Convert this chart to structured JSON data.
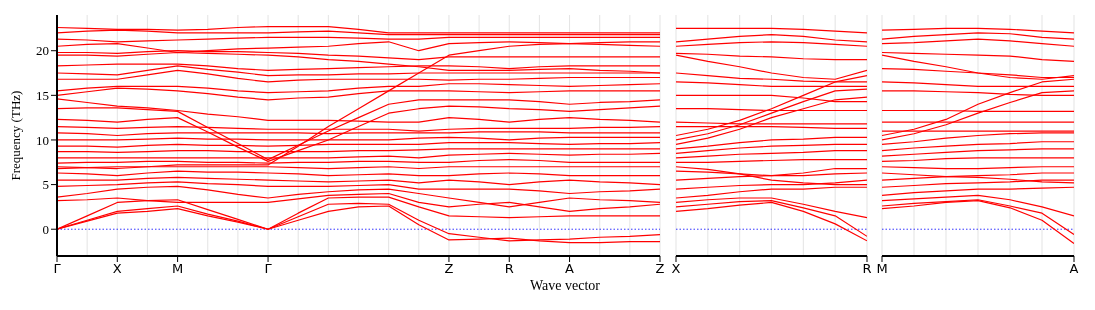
{
  "chart_data": [
    {
      "type": "line",
      "ylabel": "Frequency (THz)",
      "xlabel": "Wave vector",
      "grid": "x",
      "line_style": "solid",
      "marker": "none",
      "categories": [
        "Γ",
        null,
        "X",
        null,
        "M",
        null,
        null,
        "Γ",
        null,
        null,
        null,
        null,
        null,
        "Z",
        null,
        "R",
        null,
        "A",
        null,
        null,
        "Z"
      ],
      "ylim": [
        -3,
        24
      ],
      "yticks": [
        0,
        5,
        10,
        15,
        20
      ],
      "ref_lines": [
        {
          "axis": "y",
          "value": 0,
          "color": "#0000ff",
          "line_style": "dotted"
        }
      ],
      "series": [
        {
          "color": "#ff0000",
          "values": [
            0,
            0.9,
            1.8,
            2.0,
            2.3,
            1.5,
            0.8,
            0,
            1.0,
            2.0,
            2.5,
            2.6,
            0.5,
            -1.2,
            -1.1,
            -1.0,
            -1.3,
            -1.5,
            -1.5,
            -1.4,
            -1.4
          ]
        },
        {
          "color": "#ff0000",
          "values": [
            0,
            1.0,
            2.0,
            2.3,
            2.6,
            1.7,
            0.9,
            0,
            1.4,
            2.8,
            2.9,
            2.8,
            1.0,
            -0.5,
            -0.9,
            -1.3,
            -1.2,
            -1.1,
            -0.9,
            -0.8,
            -0.6
          ]
        },
        {
          "color": "#ff0000",
          "values": [
            0,
            1.5,
            3.0,
            3.2,
            3.3,
            2.2,
            1.1,
            0,
            1.8,
            3.5,
            3.6,
            3.6,
            2.5,
            1.5,
            1.4,
            1.3,
            1.4,
            1.5,
            1.5,
            1.5,
            1.5
          ]
        },
        {
          "color": "#ff0000",
          "values": [
            3.2,
            3.3,
            3.5,
            3.2,
            3.0,
            3.0,
            3.0,
            3.0,
            3.4,
            3.8,
            3.9,
            4.0,
            3.0,
            2.5,
            2.8,
            3.0,
            2.5,
            2.0,
            2.3,
            2.5,
            2.8
          ]
        },
        {
          "color": "#ff0000",
          "values": [
            3.6,
            4.0,
            4.5,
            4.7,
            4.8,
            4.4,
            3.9,
            3.5,
            3.9,
            4.2,
            4.4,
            4.5,
            4.0,
            3.5,
            3.0,
            2.5,
            3.0,
            3.5,
            3.3,
            3.2,
            3.0
          ]
        },
        {
          "color": "#ff0000",
          "values": [
            4.8,
            4.9,
            5.0,
            5.2,
            5.3,
            5.1,
            5.0,
            4.8,
            4.8,
            4.8,
            4.9,
            5.0,
            4.5,
            4.5,
            4.5,
            4.5,
            4.3,
            4.0,
            4.2,
            4.3,
            4.5
          ]
        },
        {
          "color": "#ff0000",
          "values": [
            5.5,
            5.5,
            5.5,
            5.7,
            5.8,
            5.7,
            5.6,
            5.5,
            5.4,
            5.3,
            5.4,
            5.5,
            5.2,
            5.5,
            5.3,
            5.0,
            5.3,
            5.5,
            5.3,
            5.2,
            5.0
          ]
        },
        {
          "color": "#ff0000",
          "values": [
            6.3,
            6.2,
            6.0,
            6.3,
            6.5,
            6.4,
            6.4,
            6.3,
            6.2,
            6.0,
            6.1,
            6.2,
            6.0,
            6.0,
            6.2,
            6.3,
            6.2,
            6.0,
            6.0,
            6.0,
            6.0
          ]
        },
        {
          "color": "#ff0000",
          "values": [
            6.8,
            6.9,
            7.0,
            7.0,
            7.0,
            7.0,
            7.0,
            7.0,
            6.9,
            6.8,
            6.9,
            7.0,
            6.8,
            7.0,
            7.0,
            7.0,
            7.0,
            7.0,
            7.0,
            7.0,
            7.0
          ]
        },
        {
          "color": "#ff0000",
          "values": [
            7.4,
            7.5,
            7.5,
            7.6,
            7.6,
            7.5,
            7.5,
            7.4,
            7.5,
            7.5,
            7.6,
            7.6,
            7.5,
            7.5,
            7.7,
            7.8,
            7.7,
            7.5,
            7.5,
            7.5,
            7.5
          ]
        },
        {
          "color": "#ff0000",
          "values": [
            8.0,
            8.0,
            8.0,
            8.0,
            8.0,
            8.0,
            8.0,
            8.0,
            8.0,
            8.0,
            8.1,
            8.2,
            8.0,
            8.3,
            8.4,
            8.5,
            8.4,
            8.3,
            8.4,
            8.4,
            8.5
          ]
        },
        {
          "color": "#ff0000",
          "values": [
            8.7,
            8.7,
            8.6,
            8.7,
            8.8,
            8.8,
            8.7,
            8.7,
            8.7,
            8.7,
            8.8,
            8.8,
            8.9,
            9.0,
            9.0,
            9.0,
            9.0,
            9.0,
            9.0,
            9.0,
            9.0
          ]
        },
        {
          "color": "#ff0000",
          "values": [
            9.3,
            9.3,
            9.2,
            9.4,
            9.5,
            9.4,
            9.4,
            9.3,
            9.4,
            9.5,
            9.5,
            9.5,
            9.5,
            9.7,
            9.7,
            9.7,
            9.6,
            9.5,
            9.6,
            9.6,
            9.7
          ]
        },
        {
          "color": "#ff0000",
          "values": [
            10.0,
            10.0,
            10.0,
            10.1,
            10.2,
            10.1,
            10.1,
            10.0,
            10.0,
            10.0,
            10.0,
            10.0,
            10.2,
            10.3,
            10.2,
            10.0,
            10.2,
            10.3,
            10.3,
            10.3,
            10.3
          ]
        },
        {
          "color": "#ff0000",
          "values": [
            10.8,
            10.7,
            10.5,
            10.7,
            10.8,
            10.8,
            10.8,
            10.8,
            10.8,
            10.7,
            10.8,
            10.8,
            10.8,
            10.8,
            10.9,
            10.9,
            10.9,
            10.8,
            10.8,
            10.8,
            10.8
          ]
        },
        {
          "color": "#ff0000",
          "values": [
            11.5,
            11.4,
            11.3,
            11.4,
            11.5,
            11.4,
            11.3,
            11.2,
            11.2,
            11.2,
            11.2,
            11.2,
            11.0,
            11.2,
            11.3,
            11.3,
            11.3,
            11.3,
            11.4,
            11.4,
            11.5
          ]
        },
        {
          "color": "#ff0000",
          "values": [
            12.3,
            12.2,
            12.0,
            12.3,
            12.5,
            10.9,
            9.2,
            7.6,
            8.8,
            10.0,
            11.5,
            13.0,
            13.5,
            13.8,
            13.7,
            13.5,
            13.4,
            13.2,
            13.4,
            13.6,
            13.8
          ]
        },
        {
          "color": "#ff0000",
          "values": [
            13.5,
            13.6,
            13.6,
            13.4,
            13.2,
            11.4,
            9.6,
            7.8,
            9.4,
            11.0,
            12.5,
            14.0,
            14.5,
            14.5,
            14.5,
            14.5,
            14.3,
            14.0,
            14.2,
            14.3,
            14.5
          ]
        },
        {
          "color": "#ff0000",
          "values": [
            14.6,
            14.2,
            13.8,
            13.6,
            13.3,
            12.9,
            12.6,
            12.2,
            12.2,
            12.2,
            12.1,
            12.0,
            12.0,
            12.5,
            12.3,
            12.0,
            12.3,
            12.5,
            12.3,
            12.2,
            12.0
          ]
        },
        {
          "color": "#ff0000",
          "values": [
            15.0,
            15.4,
            15.8,
            15.7,
            15.5,
            15.2,
            14.8,
            14.5,
            14.7,
            14.8,
            15.2,
            15.5,
            15.5,
            15.5,
            15.4,
            15.3,
            15.4,
            15.5,
            15.5,
            15.5,
            15.5
          ]
        },
        {
          "color": "#ff0000",
          "values": [
            15.5,
            15.8,
            16.0,
            16.0,
            16.0,
            15.8,
            15.5,
            15.3,
            15.4,
            15.5,
            15.8,
            16.0,
            16.0,
            16.3,
            16.3,
            16.2,
            16.1,
            16.0,
            16.1,
            16.2,
            16.3
          ]
        },
        {
          "color": "#ff0000",
          "values": [
            16.8,
            16.8,
            16.8,
            17.3,
            17.8,
            17.4,
            16.9,
            16.5,
            16.7,
            16.8,
            16.8,
            16.8,
            16.8,
            16.7,
            16.8,
            16.8,
            16.9,
            17.0,
            17.0,
            17.0,
            17.0
          ]
        },
        {
          "color": "#ff0000",
          "values": [
            17.5,
            17.4,
            17.3,
            17.8,
            18.3,
            17.9,
            17.6,
            17.2,
            17.3,
            17.3,
            17.4,
            17.4,
            17.5,
            17.5,
            17.5,
            17.5,
            17.5,
            17.5,
            17.5,
            17.5,
            17.5
          ]
        },
        {
          "color": "#ff0000",
          "values": [
            18.3,
            18.4,
            18.5,
            18.5,
            18.5,
            18.3,
            18.0,
            17.8,
            17.9,
            18.0,
            18.1,
            18.2,
            18.3,
            18.3,
            18.2,
            18.0,
            18.2,
            18.3,
            18.3,
            18.3,
            18.3
          ]
        },
        {
          "color": "#ff0000",
          "values": [
            19.5,
            19.5,
            19.4,
            19.6,
            19.8,
            19.7,
            19.6,
            19.5,
            19.3,
            19.0,
            18.8,
            18.5,
            18.2,
            17.8,
            17.8,
            17.8,
            17.9,
            18.0,
            17.8,
            17.7,
            17.5
          ]
        },
        {
          "color": "#ff0000",
          "values": [
            19.8,
            19.8,
            19.7,
            19.9,
            20.0,
            19.9,
            19.9,
            19.8,
            19.7,
            19.5,
            19.4,
            19.2,
            19.0,
            19.3,
            19.3,
            19.3,
            19.3,
            19.3,
            19.3,
            19.3,
            19.3
          ]
        },
        {
          "color": "#ff0000",
          "values": [
            20.5,
            20.7,
            20.8,
            20.3,
            19.8,
            20.0,
            20.2,
            20.3,
            20.4,
            20.5,
            20.8,
            21.0,
            20.0,
            20.8,
            20.9,
            21.0,
            20.9,
            20.8,
            20.7,
            20.6,
            20.5
          ]
        },
        {
          "color": "#ff0000",
          "values": [
            21.3,
            21.2,
            21.0,
            21.1,
            21.2,
            21.3,
            21.4,
            21.5,
            21.5,
            21.5,
            21.4,
            21.3,
            21.3,
            21.5,
            21.5,
            21.5,
            21.5,
            21.5,
            21.5,
            21.5,
            21.5
          ]
        },
        {
          "color": "#ff0000",
          "values": [
            22.0,
            22.2,
            22.3,
            22.2,
            22.0,
            22.0,
            22.0,
            22.0,
            22.1,
            22.2,
            22.0,
            21.8,
            21.8,
            21.8,
            21.8,
            21.8,
            21.8,
            21.8,
            21.8,
            21.8,
            21.8
          ]
        },
        {
          "color": "#ff0000",
          "values": [
            22.6,
            22.5,
            22.4,
            22.4,
            22.3,
            22.4,
            22.6,
            22.7,
            22.7,
            22.7,
            22.4,
            22.0,
            22.0,
            22.0,
            22.0,
            22.0,
            22.0,
            22.0,
            22.0,
            22.0,
            22.0
          ]
        },
        {
          "color": "#ff0000",
          "values": [
            7.0,
            6.9,
            6.8,
            7.0,
            7.2,
            7.2,
            7.2,
            7.2,
            9.3,
            11.5,
            13.5,
            15.5,
            17.5,
            19.5,
            20.0,
            20.5,
            20.7,
            20.8,
            20.9,
            21.0,
            21.0
          ]
        }
      ]
    },
    {
      "type": "line",
      "grid": "x",
      "line_style": "solid",
      "marker": "none",
      "tick_labels": "x",
      "categories": [
        "X",
        null,
        null,
        null,
        null,
        null,
        "R"
      ],
      "ylim": [
        -3,
        24
      ],
      "ref_lines": [
        {
          "axis": "y",
          "value": 0,
          "color": "#0000ff",
          "line_style": "dotted"
        }
      ],
      "series": [
        {
          "color": "#ff0000",
          "values": [
            2.0,
            2.3,
            2.7,
            3.0,
            2.0,
            0.6,
            -1.3
          ]
        },
        {
          "color": "#ff0000",
          "values": [
            2.5,
            2.8,
            3.1,
            3.2,
            2.4,
            1.5,
            -0.8
          ]
        },
        {
          "color": "#ff0000",
          "values": [
            3.0,
            3.3,
            3.5,
            3.5,
            2.8,
            2.0,
            1.3
          ]
        },
        {
          "color": "#ff0000",
          "values": [
            3.5,
            3.8,
            4.2,
            4.5,
            4.5,
            4.7,
            4.7
          ]
        },
        {
          "color": "#ff0000",
          "values": [
            4.5,
            4.7,
            4.9,
            5.0,
            5.0,
            5.2,
            5.5
          ]
        },
        {
          "color": "#ff0000",
          "values": [
            5.5,
            5.7,
            5.9,
            6.0,
            6.0,
            6.2,
            6.3
          ]
        },
        {
          "color": "#ff0000",
          "values": [
            6.5,
            6.4,
            6.2,
            6.0,
            6.3,
            6.8,
            6.8
          ]
        },
        {
          "color": "#ff0000",
          "values": [
            7.0,
            6.7,
            6.2,
            5.5,
            5.2,
            5.0,
            5.0
          ]
        },
        {
          "color": "#ff0000",
          "values": [
            7.5,
            7.5,
            7.6,
            7.7,
            7.8,
            7.8,
            7.8
          ]
        },
        {
          "color": "#ff0000",
          "values": [
            8.0,
            8.2,
            8.4,
            8.5,
            8.6,
            8.8,
            8.8
          ]
        },
        {
          "color": "#ff0000",
          "values": [
            8.5,
            8.8,
            9.1,
            9.3,
            9.4,
            9.5,
            9.5
          ]
        },
        {
          "color": "#ff0000",
          "values": [
            9.0,
            9.3,
            9.7,
            10.0,
            10.1,
            10.3,
            10.3
          ]
        },
        {
          "color": "#ff0000",
          "values": [
            9.5,
            10.2,
            11.2,
            12.5,
            13.5,
            14.5,
            14.8
          ]
        },
        {
          "color": "#ff0000",
          "values": [
            10.0,
            10.7,
            11.7,
            13.0,
            14.3,
            15.5,
            15.7
          ]
        },
        {
          "color": "#ff0000",
          "values": [
            10.5,
            11.2,
            12.2,
            13.5,
            15.0,
            16.5,
            17.2
          ]
        },
        {
          "color": "#ff0000",
          "values": [
            11.5,
            11.5,
            11.5,
            11.5,
            11.4,
            11.3,
            11.3
          ]
        },
        {
          "color": "#ff0000",
          "values": [
            12.0,
            11.9,
            11.8,
            11.8,
            11.8,
            11.8,
            11.8
          ]
        },
        {
          "color": "#ff0000",
          "values": [
            13.5,
            13.5,
            13.4,
            13.3,
            13.3,
            13.3,
            13.3
          ]
        },
        {
          "color": "#ff0000",
          "values": [
            15.0,
            15.0,
            15.0,
            15.0,
            14.7,
            14.3,
            14.3
          ]
        },
        {
          "color": "#ff0000",
          "values": [
            16.5,
            16.4,
            16.2,
            16.0,
            16.0,
            16.0,
            16.0
          ]
        },
        {
          "color": "#ff0000",
          "values": [
            17.5,
            17.2,
            16.9,
            16.8,
            16.6,
            16.5,
            16.5
          ]
        },
        {
          "color": "#ff0000",
          "values": [
            19.5,
            18.8,
            18.2,
            17.5,
            17.0,
            16.8,
            17.8
          ]
        },
        {
          "color": "#ff0000",
          "values": [
            19.7,
            19.6,
            19.4,
            19.3,
            19.1,
            19.0,
            19.0
          ]
        },
        {
          "color": "#ff0000",
          "values": [
            20.5,
            20.7,
            20.9,
            21.0,
            20.9,
            20.7,
            20.5
          ]
        },
        {
          "color": "#ff0000",
          "values": [
            21.0,
            21.3,
            21.6,
            21.8,
            21.6,
            21.2,
            21.0
          ]
        },
        {
          "color": "#ff0000",
          "values": [
            22.5,
            22.5,
            22.5,
            22.5,
            22.4,
            22.2,
            22.0
          ]
        }
      ]
    },
    {
      "type": "line",
      "grid": "x",
      "line_style": "solid",
      "marker": "none",
      "tick_labels": "x",
      "categories": [
        "M",
        null,
        null,
        null,
        null,
        null,
        "A"
      ],
      "ylim": [
        -3,
        24
      ],
      "ref_lines": [
        {
          "axis": "y",
          "value": 0,
          "color": "#0000ff",
          "line_style": "dotted"
        }
      ],
      "series": [
        {
          "color": "#ff0000",
          "values": [
            2.3,
            2.6,
            3.0,
            3.2,
            2.4,
            1.0,
            -1.6
          ]
        },
        {
          "color": "#ff0000",
          "values": [
            2.6,
            2.9,
            3.1,
            3.3,
            2.6,
            1.8,
            -0.6
          ]
        },
        {
          "color": "#ff0000",
          "values": [
            3.2,
            3.4,
            3.6,
            3.8,
            3.3,
            2.5,
            1.5
          ]
        },
        {
          "color": "#ff0000",
          "values": [
            3.8,
            4.1,
            4.3,
            4.5,
            4.5,
            4.6,
            4.7
          ]
        },
        {
          "color": "#ff0000",
          "values": [
            4.7,
            4.9,
            5.1,
            5.2,
            5.3,
            5.5,
            5.5
          ]
        },
        {
          "color": "#ff0000",
          "values": [
            5.5,
            5.7,
            5.9,
            6.0,
            6.1,
            6.3,
            6.3
          ]
        },
        {
          "color": "#ff0000",
          "values": [
            6.3,
            6.1,
            5.9,
            5.8,
            5.6,
            5.3,
            5.2
          ]
        },
        {
          "color": "#ff0000",
          "values": [
            7.0,
            6.9,
            6.8,
            6.8,
            6.9,
            7.0,
            7.0
          ]
        },
        {
          "color": "#ff0000",
          "values": [
            7.6,
            7.7,
            7.9,
            8.0,
            8.0,
            8.0,
            8.0
          ]
        },
        {
          "color": "#ff0000",
          "values": [
            8.2,
            8.4,
            8.6,
            8.8,
            8.9,
            9.0,
            9.0
          ]
        },
        {
          "color": "#ff0000",
          "values": [
            8.8,
            9.1,
            9.3,
            9.5,
            9.6,
            9.8,
            9.8
          ]
        },
        {
          "color": "#ff0000",
          "values": [
            9.5,
            9.8,
            10.2,
            10.5,
            10.7,
            10.8,
            10.8
          ]
        },
        {
          "color": "#ff0000",
          "values": [
            10.0,
            10.7,
            11.7,
            13.0,
            14.2,
            15.3,
            15.5
          ]
        },
        {
          "color": "#ff0000",
          "values": [
            10.5,
            11.2,
            12.3,
            14.0,
            15.3,
            16.5,
            16.8
          ]
        },
        {
          "color": "#ff0000",
          "values": [
            11.0,
            11.0,
            11.0,
            11.0,
            11.0,
            11.0,
            11.0
          ]
        },
        {
          "color": "#ff0000",
          "values": [
            12.0,
            12.0,
            12.0,
            12.0,
            12.0,
            12.0,
            12.0
          ]
        },
        {
          "color": "#ff0000",
          "values": [
            13.3,
            13.3,
            13.3,
            13.2,
            13.2,
            13.2,
            13.2
          ]
        },
        {
          "color": "#ff0000",
          "values": [
            15.5,
            15.5,
            15.4,
            15.3,
            15.1,
            15.0,
            15.0
          ]
        },
        {
          "color": "#ff0000",
          "values": [
            16.5,
            16.4,
            16.2,
            16.0,
            16.0,
            16.0,
            16.0
          ]
        },
        {
          "color": "#ff0000",
          "values": [
            18.0,
            17.9,
            17.7,
            17.5,
            17.3,
            17.0,
            17.0
          ]
        },
        {
          "color": "#ff0000",
          "values": [
            19.5,
            18.8,
            18.2,
            17.5,
            17.0,
            16.8,
            17.2
          ]
        },
        {
          "color": "#ff0000",
          "values": [
            19.8,
            19.7,
            19.6,
            19.5,
            19.4,
            19.0,
            18.8
          ]
        },
        {
          "color": "#ff0000",
          "values": [
            20.8,
            20.9,
            21.1,
            21.3,
            21.1,
            20.8,
            20.5
          ]
        },
        {
          "color": "#ff0000",
          "values": [
            21.3,
            21.6,
            21.8,
            22.0,
            21.9,
            21.5,
            21.3
          ]
        },
        {
          "color": "#ff0000",
          "values": [
            22.3,
            22.4,
            22.5,
            22.5,
            22.4,
            22.2,
            22.0
          ]
        }
      ]
    }
  ]
}
